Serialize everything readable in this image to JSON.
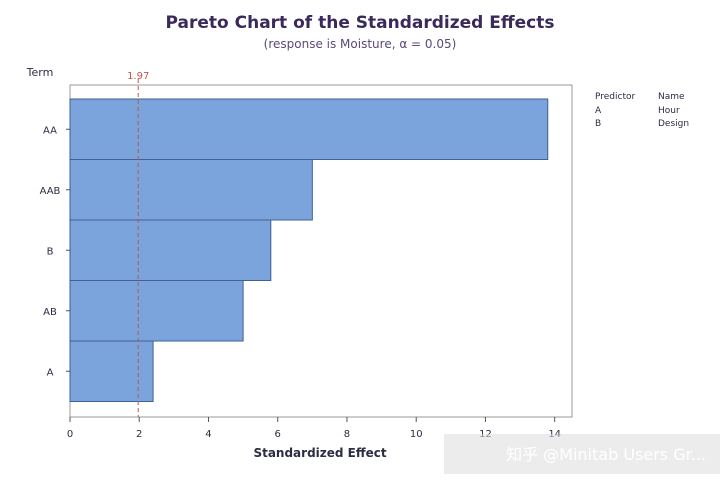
{
  "chart_data": {
    "type": "bar",
    "orientation": "horizontal",
    "title": "Pareto Chart of the Standardized Effects",
    "subtitle": "(response is Moisture, α = 0.05)",
    "xlabel": "Standardized Effect",
    "ylabel": "Term",
    "categories": [
      "AA",
      "AAB",
      "B",
      "AB",
      "A"
    ],
    "values": [
      13.8,
      7.0,
      5.8,
      5.0,
      2.4
    ],
    "xlim": [
      0,
      14.5
    ],
    "xticks": [
      0,
      2,
      4,
      6,
      8,
      10,
      12,
      14
    ],
    "reference_line": {
      "value": 1.97,
      "label": "1.97"
    },
    "legend": {
      "headers": [
        "Predictor",
        "Name"
      ],
      "rows": [
        [
          "A",
          "Hour"
        ],
        [
          "B",
          "Design"
        ]
      ]
    },
    "grid": false,
    "colors": {
      "bar": "#7ba4dc",
      "bar_edge": "#3f5f95",
      "reference": "#c2524f"
    }
  },
  "watermark": "知乎 @Minitab Users Gr..."
}
